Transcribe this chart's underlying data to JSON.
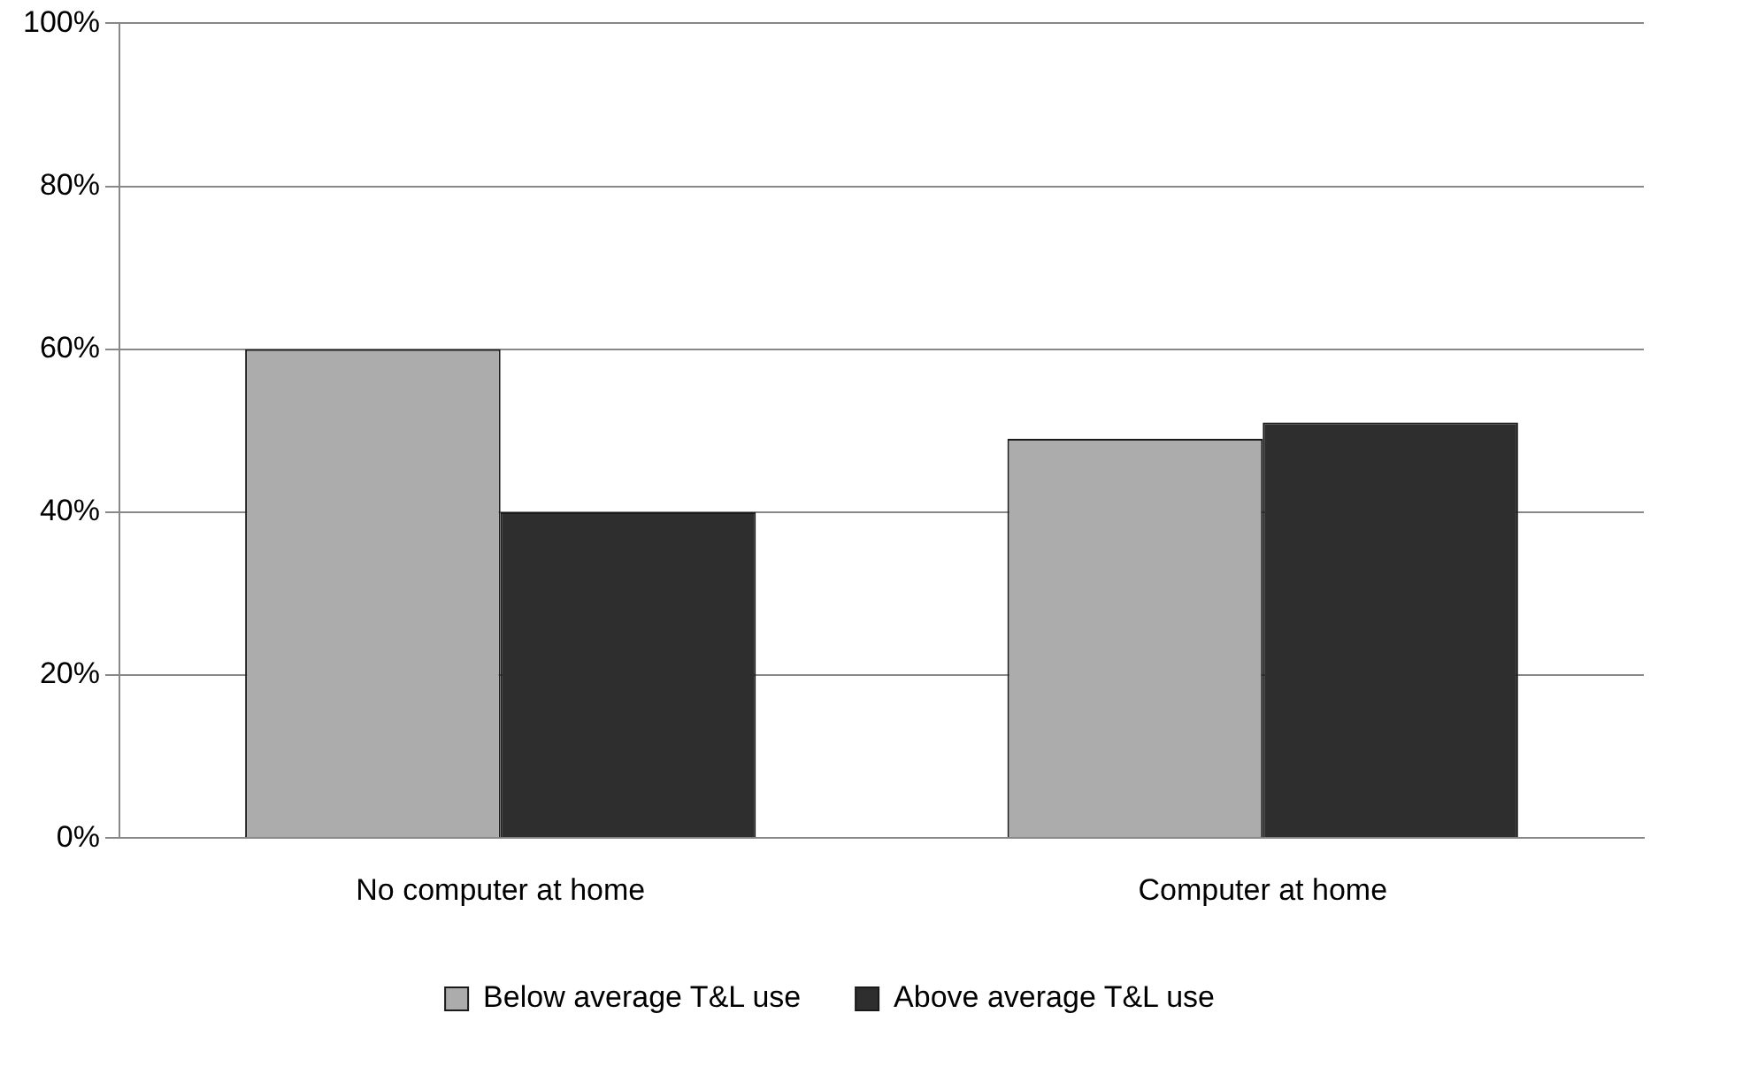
{
  "chart_data": {
    "type": "bar",
    "categories": [
      "No computer at home",
      "Computer at home"
    ],
    "series": [
      {
        "name": "Below average T&L use",
        "color": "#acacac",
        "values": [
          60,
          49
        ]
      },
      {
        "name": "Above average T&L use",
        "color": "#2e2e2e",
        "values": [
          40,
          51
        ]
      }
    ],
    "ylim": [
      0,
      100
    ],
    "yticks": [
      {
        "value": 0,
        "label": "0%"
      },
      {
        "value": 20,
        "label": "20%"
      },
      {
        "value": 40,
        "label": "40%"
      },
      {
        "value": 60,
        "label": "60%"
      },
      {
        "value": 80,
        "label": "80%"
      },
      {
        "value": 100,
        "label": "100%"
      }
    ],
    "grid": "y",
    "legend": "bottom"
  }
}
